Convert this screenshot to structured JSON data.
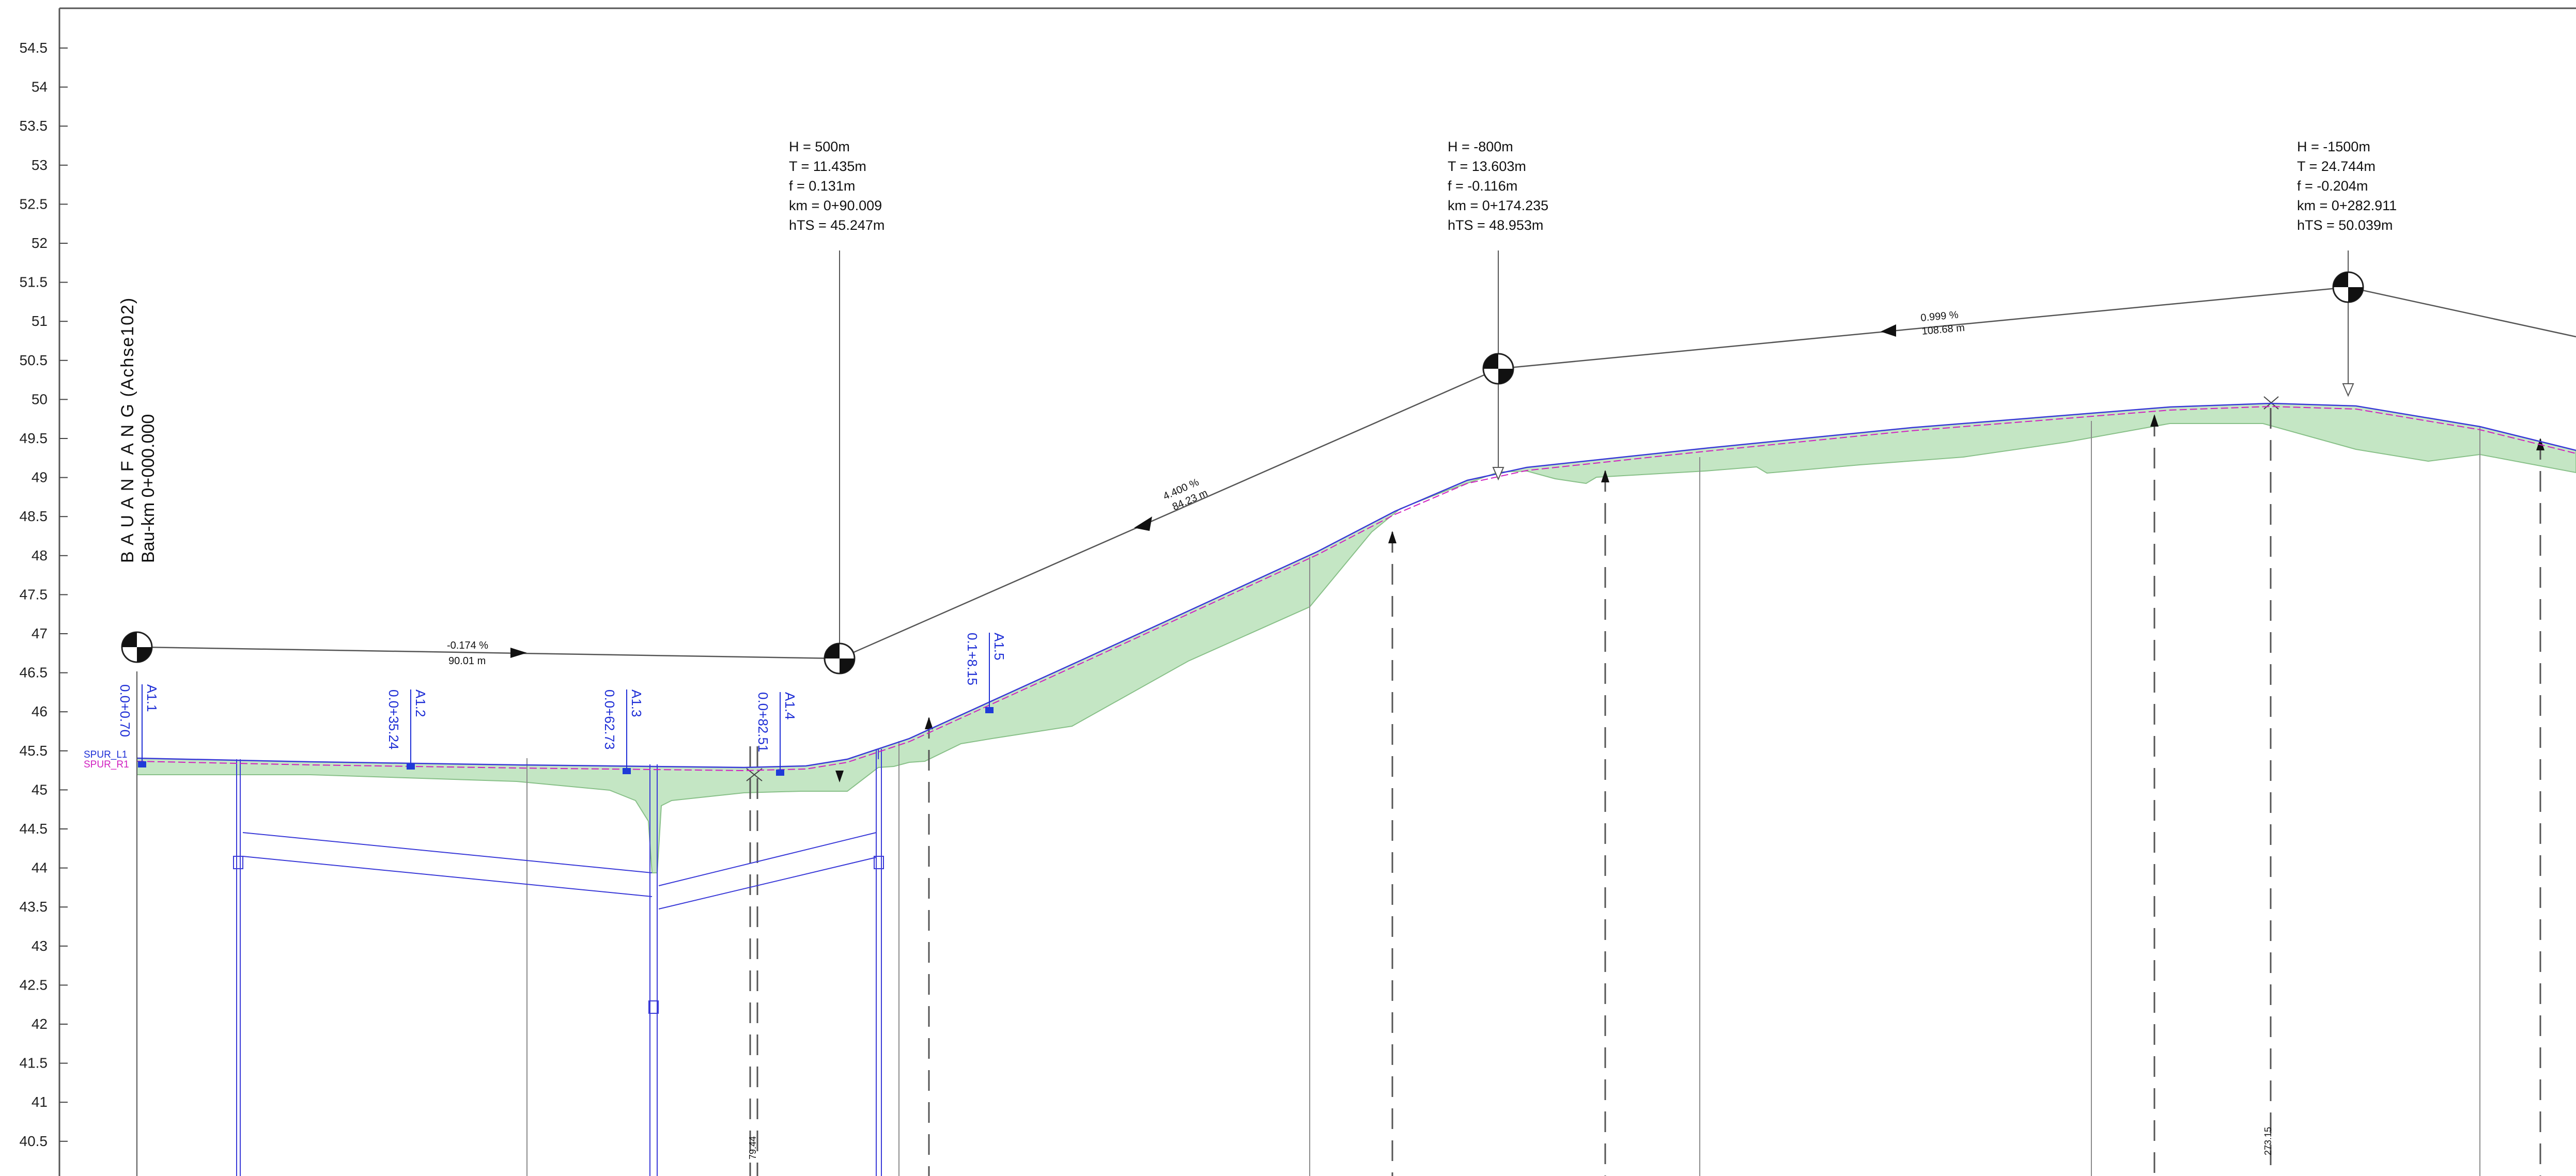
{
  "chart_data": {
    "type": "profile",
    "y_axis": {
      "ticks": [
        "54.5",
        "54",
        "53.5",
        "53",
        "52.5",
        "52",
        "51.5",
        "51",
        "50.5",
        "50",
        "49.5",
        "49",
        "48.5",
        "48",
        "47.5",
        "47",
        "46.5",
        "46",
        "45.5",
        "45",
        "44.5",
        "44",
        "43.5",
        "43",
        "42.5",
        "42",
        "41.5",
        "41",
        "40.5"
      ],
      "min": 40.5,
      "max": 54.5
    },
    "baustart": {
      "title": "B A U A N F A N G (Achse102)",
      "km": "Bau-km 0+000.000"
    },
    "vertical_curves": [
      {
        "id": "vc1",
        "km": 90.009,
        "pvi_elev": 46.6,
        "lines": [
          "H = 500m",
          "T = 11.435m",
          "f = 0.131m",
          "km = 0+90.009",
          "hTS = 45.247m"
        ]
      },
      {
        "id": "vc2",
        "km": 174.235,
        "pvi_elev": 50.38,
        "lines": [
          "H = -800m",
          "T = 13.603m",
          "f = -0.116m",
          "km = 0+174.235",
          "hTS = 48.953m"
        ]
      },
      {
        "id": "vc3",
        "km": 282.911,
        "pvi_elev": 51.42,
        "lines": [
          "H = -1500m",
          "T = 24.744m",
          "f = -0.204m",
          "km = 0+282.911",
          "hTS = 50.039m"
        ]
      }
    ],
    "tangents": [
      {
        "grade": "-0.174 %",
        "length": "90.01 m"
      },
      {
        "grade": "4.400 %",
        "length": "84.23 m"
      },
      {
        "grade": "0.999 %",
        "length": "108.68 m"
      }
    ],
    "stations": [
      {
        "name": "A1.1",
        "km": "0.0+0.70"
      },
      {
        "name": "A1.2",
        "km": "0.0+35.24"
      },
      {
        "name": "A1.3",
        "km": "0.0+62.73"
      },
      {
        "name": "A1.4",
        "km": "0.0+82.51"
      },
      {
        "name": "A1.5",
        "km": "0.1+8.15"
      }
    ],
    "markers": [
      "79.44",
      "273.15"
    ],
    "spur_labels": [
      "SPUR_L1",
      "SPUR_R1"
    ],
    "colors": {
      "terrain_fill": "#c4e6c4",
      "terrain_stroke": "#88c088",
      "station": "#1f2fd6",
      "spur_r1": "#d020c0",
      "grade_line": "#555555",
      "frame": "#555555"
    }
  }
}
